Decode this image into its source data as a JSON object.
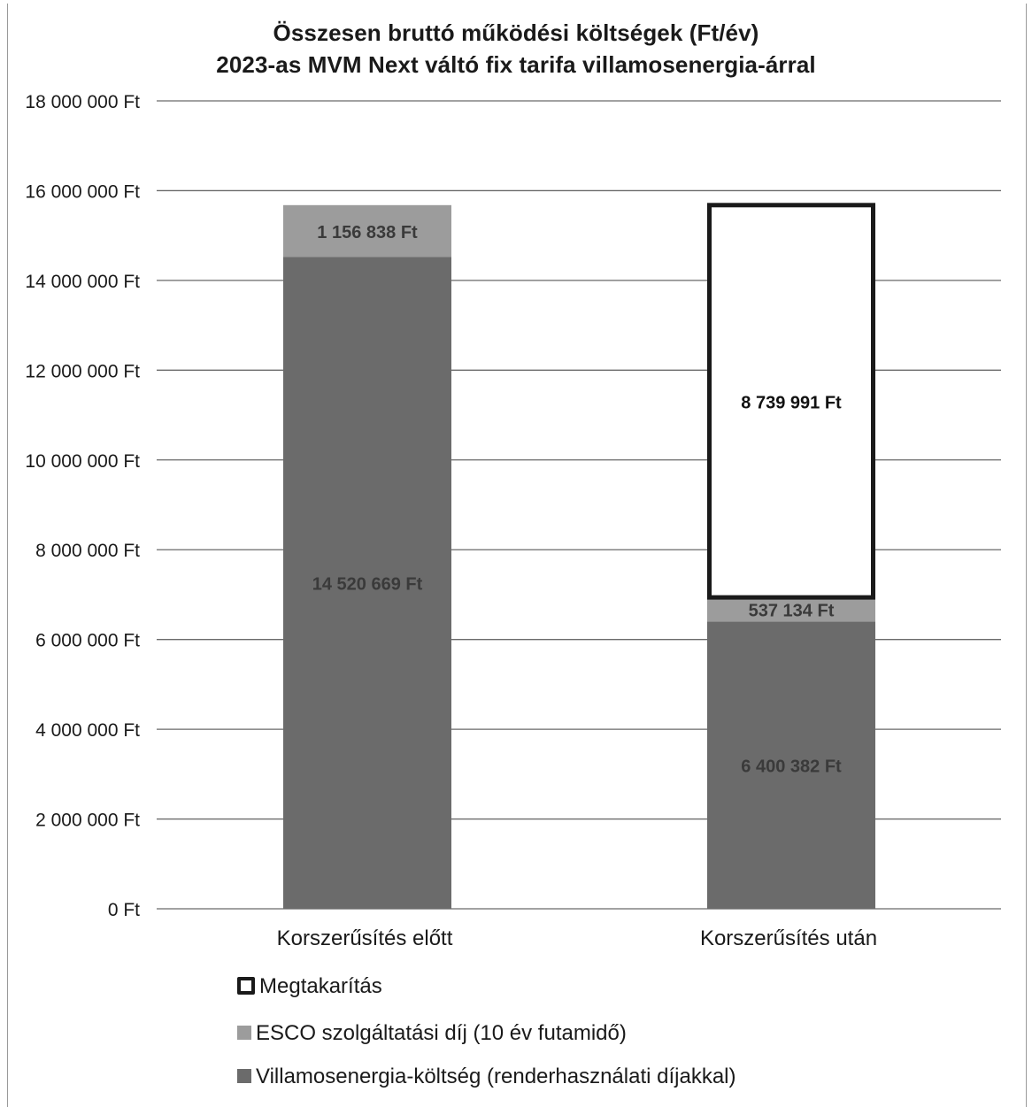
{
  "chart_data": {
    "type": "bar",
    "stacked": true,
    "title": "Összesen bruttó működési költségek (Ft/év)",
    "subtitle": "2023-as MVM Next váltó fix tarifa villamosenergia-árral",
    "categories": [
      "Korszerűsítés előtt",
      "Korszerűsítés után"
    ],
    "ylim": [
      0,
      18000000
    ],
    "yticks": [
      0,
      2000000,
      4000000,
      6000000,
      8000000,
      10000000,
      12000000,
      14000000,
      16000000,
      18000000
    ],
    "ytick_labels": [
      "0 Ft",
      "2 000 000 Ft",
      "4 000 000 Ft",
      "6 000 000 Ft",
      "8 000 000 Ft",
      "10 000 000 Ft",
      "12 000 000 Ft",
      "14 000 000 Ft",
      "16 000 000 Ft",
      "18 000 000 Ft"
    ],
    "grid": true,
    "legend_position": "bottom",
    "series": [
      {
        "name": "Villamosenergia-költség (renderhasználati díjakkal)",
        "color": "#6b6b6b",
        "values": [
          14520669,
          6400382
        ],
        "labels": [
          "14 520 669 Ft",
          "6 400 382 Ft"
        ]
      },
      {
        "name": "ESCO szolgáltatási díj (10 év futamidő)",
        "color": "#9c9c9c",
        "values": [
          1156838,
          537134
        ],
        "labels": [
          "1 156 838 Ft",
          "537 134 Ft"
        ]
      },
      {
        "name": "Megtakarítás",
        "color": "#ffffff",
        "border": "#1a1a1a",
        "values": [
          0,
          8739991
        ],
        "labels": [
          "",
          "8 739 991 Ft"
        ]
      }
    ]
  },
  "legend": [
    {
      "label": "Megtakarítás",
      "swatch": "saving"
    },
    {
      "label": "ESCO szolgáltatási díj (10 év futamidő)",
      "swatch": "esco"
    },
    {
      "label": "Villamosenergia-költség (renderhasználati díjakkal)",
      "swatch": "elec"
    }
  ]
}
